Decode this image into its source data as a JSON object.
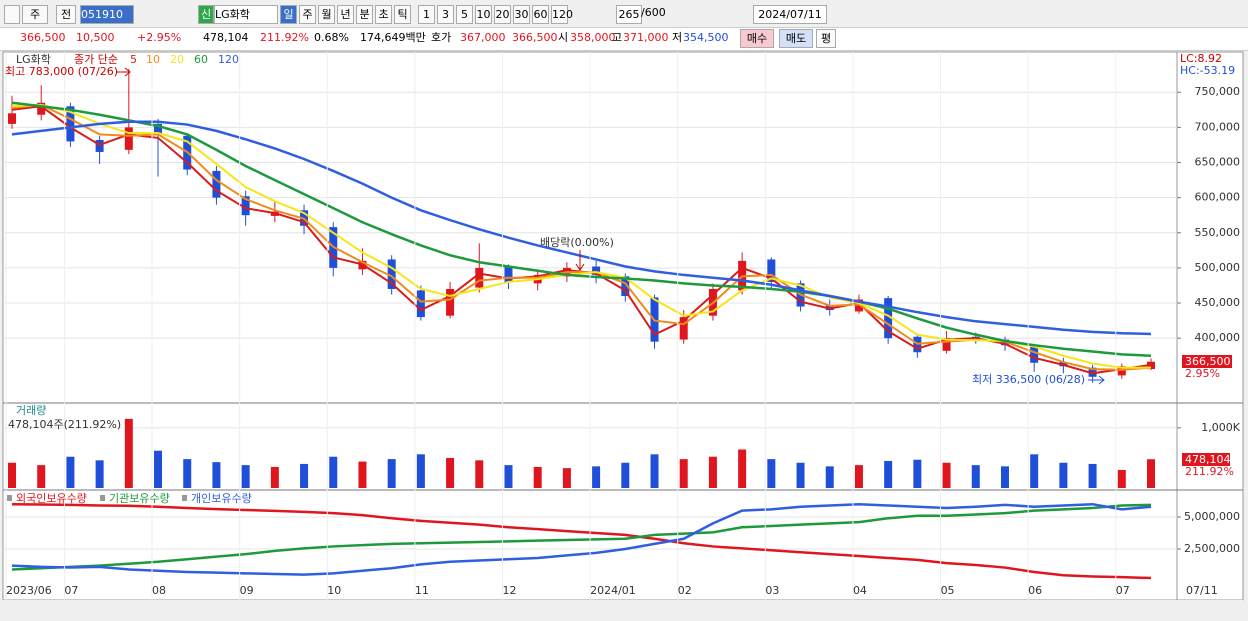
{
  "toolbar": {
    "period_unit": "주",
    "view": "전",
    "code": "051910",
    "badge": "신",
    "name": "LG화학",
    "periods": [
      "일",
      "주",
      "월",
      "년",
      "분",
      "초",
      "틱"
    ],
    "counts": [
      "1",
      "3",
      "5",
      "10",
      "20",
      "30",
      "60",
      "120"
    ],
    "shown": "265",
    "total": "/600",
    "date": "2024/07/11"
  },
  "infobar": {
    "price": "366,500",
    "change": "10,500",
    "change_pct": "+2.95%",
    "volume": "478,104",
    "volume_ratio": "211.92%",
    "turnover": "0.68%",
    "amount": "174,649백만",
    "quote_label": "호가",
    "ask": "367,000",
    "bid": "366,500",
    "open_label": "시",
    "open": "358,000",
    "high_label": "고",
    "high": "371,000",
    "low_label": "저",
    "low": "354,500",
    "buy": "매수",
    "sell": "매도",
    "avg": "평"
  },
  "chart_data": [
    {
      "type": "candlestick",
      "name": "LG화학",
      "ma_label": "종가 단순",
      "categories": [
        "2023/06",
        null,
        "07",
        null,
        null,
        "08",
        null,
        null,
        "09",
        null,
        null,
        "10",
        null,
        null,
        "11",
        null,
        null,
        "12",
        null,
        null,
        "2024/01",
        null,
        null,
        "02",
        null,
        null,
        "03",
        null,
        null,
        "04",
        null,
        null,
        "05",
        null,
        null,
        "06",
        null,
        null,
        "07",
        null
      ],
      "open": [
        705000,
        718000,
        730000,
        682000,
        668000,
        705000,
        688000,
        638000,
        602000,
        574000,
        582000,
        558000,
        498000,
        512000,
        468000,
        432000,
        472000,
        502000,
        478000,
        488000,
        502000,
        488000,
        458000,
        398000,
        432000,
        468000,
        512000,
        478000,
        447000,
        438000,
        457000,
        402000,
        382000,
        402000,
        398000,
        388000,
        366000,
        358000,
        347000,
        356000
      ],
      "high": [
        745000,
        760000,
        735000,
        688000,
        783000,
        712000,
        692000,
        645000,
        610000,
        595000,
        590000,
        565000,
        528000,
        518000,
        475000,
        480000,
        535000,
        505000,
        498000,
        508000,
        510000,
        492000,
        462000,
        440000,
        478000,
        522000,
        515000,
        482000,
        455000,
        462000,
        460000,
        405000,
        410000,
        408000,
        402000,
        392000,
        372000,
        362000,
        364000,
        371000
      ],
      "low": [
        698000,
        710000,
        672000,
        648000,
        662000,
        630000,
        632000,
        590000,
        560000,
        565000,
        548000,
        488000,
        490000,
        462000,
        425000,
        428000,
        465000,
        470000,
        468000,
        480000,
        478000,
        452000,
        385000,
        392000,
        425000,
        462000,
        470000,
        438000,
        432000,
        435000,
        392000,
        372000,
        378000,
        392000,
        382000,
        352000,
        350000,
        336500,
        342000,
        354500
      ],
      "close": [
        720000,
        735000,
        680000,
        665000,
        700000,
        690000,
        640000,
        600000,
        575000,
        580000,
        560000,
        500000,
        510000,
        470000,
        430000,
        470000,
        500000,
        480000,
        490000,
        500000,
        490000,
        460000,
        395000,
        430000,
        470000,
        510000,
        480000,
        445000,
        440000,
        455000,
        400000,
        380000,
        400000,
        400000,
        390000,
        365000,
        360000,
        345000,
        360000,
        366500
      ],
      "up_color": "#e0161f",
      "down_color": "#1f4fd8",
      "series": [
        {
          "name": "5",
          "color": "#d81b1b",
          "values": [
            725000,
            730000,
            700000,
            675000,
            690000,
            685000,
            650000,
            610000,
            585000,
            578000,
            565000,
            515000,
            505000,
            478000,
            440000,
            460000,
            492000,
            485000,
            488000,
            497000,
            492000,
            468000,
            405000,
            425000,
            462000,
            500000,
            485000,
            452000,
            442000,
            450000,
            410000,
            385000,
            398000,
            400000,
            392000,
            372000,
            362000,
            350000,
            356000,
            362000
          ]
        },
        {
          "name": "10",
          "color": "#f08a1c",
          "values": [
            728000,
            732000,
            712000,
            690000,
            688000,
            690000,
            665000,
            625000,
            598000,
            582000,
            570000,
            530000,
            508000,
            488000,
            452000,
            455000,
            482000,
            486000,
            486000,
            494000,
            494000,
            478000,
            425000,
            420000,
            450000,
            488000,
            490000,
            462000,
            446000,
            448000,
            420000,
            392000,
            395000,
            398000,
            395000,
            380000,
            366000,
            356000,
            355000,
            358000
          ]
        },
        {
          "name": "20",
          "color": "#f5e61a",
          "values": [
            730000,
            732000,
            722000,
            705000,
            692000,
            692000,
            680000,
            648000,
            615000,
            595000,
            578000,
            550000,
            522000,
            500000,
            470000,
            460000,
            470000,
            480000,
            484000,
            490000,
            494000,
            486000,
            455000,
            432000,
            438000,
            468000,
            485000,
            475000,
            458000,
            450000,
            432000,
            405000,
            398000,
            397000,
            396000,
            388000,
            375000,
            364000,
            358000,
            358000
          ]
        },
        {
          "name": "60",
          "color": "#1e9a3c",
          "values": [
            735000,
            730000,
            725000,
            718000,
            710000,
            702000,
            690000,
            668000,
            645000,
            625000,
            605000,
            585000,
            565000,
            548000,
            532000,
            518000,
            508000,
            502000,
            496000,
            490000,
            487000,
            485000,
            482000,
            478000,
            475000,
            473000,
            470000,
            466000,
            460000,
            452000,
            442000,
            428000,
            415000,
            405000,
            396000,
            390000,
            385000,
            381000,
            377000,
            375000
          ]
        },
        {
          "name": "120",
          "color": "#2f5ee0",
          "values": [
            690000,
            695000,
            700000,
            705000,
            708000,
            708000,
            704000,
            695000,
            683000,
            670000,
            655000,
            638000,
            620000,
            600000,
            582000,
            568000,
            555000,
            543000,
            532000,
            522000,
            512000,
            502000,
            495000,
            490000,
            486000,
            482000,
            476000,
            468000,
            460000,
            452000,
            445000,
            437000,
            430000,
            424000,
            420000,
            416000,
            412000,
            409000,
            407000,
            406000
          ]
        }
      ],
      "ylim": [
        312000,
        803000
      ],
      "yticks": [
        {
          "value": 400000,
          "label": "400,000"
        },
        {
          "value": 450000,
          "label": "450,000"
        },
        {
          "value": 500000,
          "label": "500,000"
        },
        {
          "value": 550000,
          "label": "550,000"
        },
        {
          "value": 600000,
          "label": "600,000"
        },
        {
          "value": 650000,
          "label": "650,000"
        },
        {
          "value": 700000,
          "label": "700,000"
        },
        {
          "value": 750000,
          "label": "750,000"
        }
      ],
      "annotations": {
        "high": "최고 783,000 (07/26)",
        "dividend": "배당락(0.00%)",
        "low": "최저 336,500 (06/28)",
        "lc": "LC:8.92",
        "hc": "HC:-53.19",
        "last": "366,500",
        "last_pct": "2.95%"
      },
      "x_end_label": "07/11"
    },
    {
      "type": "bar",
      "title": "거래량",
      "subtitle": "478,104주(211.92%)",
      "values": [
        420000,
        380000,
        520000,
        460000,
        1150000,
        620000,
        480000,
        430000,
        380000,
        350000,
        400000,
        520000,
        440000,
        480000,
        560000,
        500000,
        460000,
        380000,
        350000,
        330000,
        360000,
        420000,
        560000,
        480000,
        520000,
        640000,
        480000,
        420000,
        360000,
        380000,
        450000,
        470000,
        420000,
        380000,
        360000,
        560000,
        420000,
        400000,
        300000,
        478104
      ],
      "ylim": [
        0,
        1330000
      ],
      "yticks": [
        {
          "value": 1000000,
          "label": "1,000K"
        }
      ],
      "last_label": "478,104",
      "last_pct": "211.92%"
    },
    {
      "type": "line",
      "series": [
        {
          "name": "외국인보유수량",
          "color": "#e0161f",
          "values": [
            6000000,
            5980000,
            5950000,
            5900000,
            5880000,
            5800000,
            5700000,
            5620000,
            5550000,
            5480000,
            5400000,
            5300000,
            5150000,
            4900000,
            4700000,
            4550000,
            4400000,
            4200000,
            4050000,
            3900000,
            3750000,
            3600000,
            3300000,
            2950000,
            2700000,
            2550000,
            2400000,
            2250000,
            2100000,
            1950000,
            1800000,
            1650000,
            1400000,
            1250000,
            1050000,
            700000,
            450000,
            350000,
            300000,
            230000
          ]
        },
        {
          "name": "기관보유수량",
          "color": "#1e9a3c",
          "values": [
            900000,
            1000000,
            1100000,
            1200000,
            1350000,
            1500000,
            1700000,
            1900000,
            2100000,
            2350000,
            2550000,
            2700000,
            2800000,
            2900000,
            2950000,
            3000000,
            3050000,
            3100000,
            3150000,
            3200000,
            3250000,
            3300000,
            3600000,
            3700000,
            3800000,
            4200000,
            4300000,
            4400000,
            4500000,
            4600000,
            4900000,
            5100000,
            5100000,
            5200000,
            5300000,
            5500000,
            5600000,
            5700000,
            5900000,
            5950000
          ]
        },
        {
          "name": "개인보유수량",
          "color": "#2f5ee0",
          "values": [
            1200000,
            1100000,
            1050000,
            1100000,
            900000,
            800000,
            700000,
            650000,
            600000,
            550000,
            500000,
            600000,
            800000,
            1000000,
            1300000,
            1500000,
            1600000,
            1700000,
            1800000,
            2000000,
            2200000,
            2500000,
            2900000,
            3300000,
            4500000,
            5500000,
            5600000,
            5800000,
            5900000,
            6000000,
            5900000,
            5800000,
            5700000,
            5800000,
            5950000,
            5800000,
            5900000,
            6000000,
            5600000,
            5800000
          ]
        }
      ],
      "ylim": [
        0,
        6875000
      ],
      "yticks": [
        {
          "value": 2500000,
          "label": "2,500,000"
        },
        {
          "value": 5000000,
          "label": "5,000,000"
        }
      ]
    }
  ]
}
